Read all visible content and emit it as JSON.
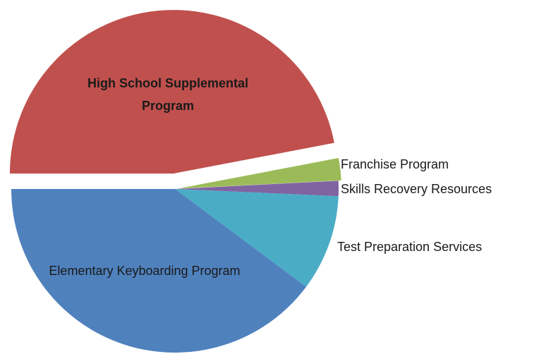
{
  "chart_data": {
    "type": "pie",
    "categories": [
      "High School Supplemental Program",
      "Franchise Program",
      "Skills Recovery Resources",
      "Test Preparation Services",
      "Elementary Keyboarding Program"
    ],
    "values": [
      47,
      2.2,
      1.5,
      9.5,
      39.8
    ],
    "colors": [
      "#c0504d",
      "#9bbb59",
      "#8064a2",
      "#4bacc6",
      "#4f81bd"
    ]
  }
}
